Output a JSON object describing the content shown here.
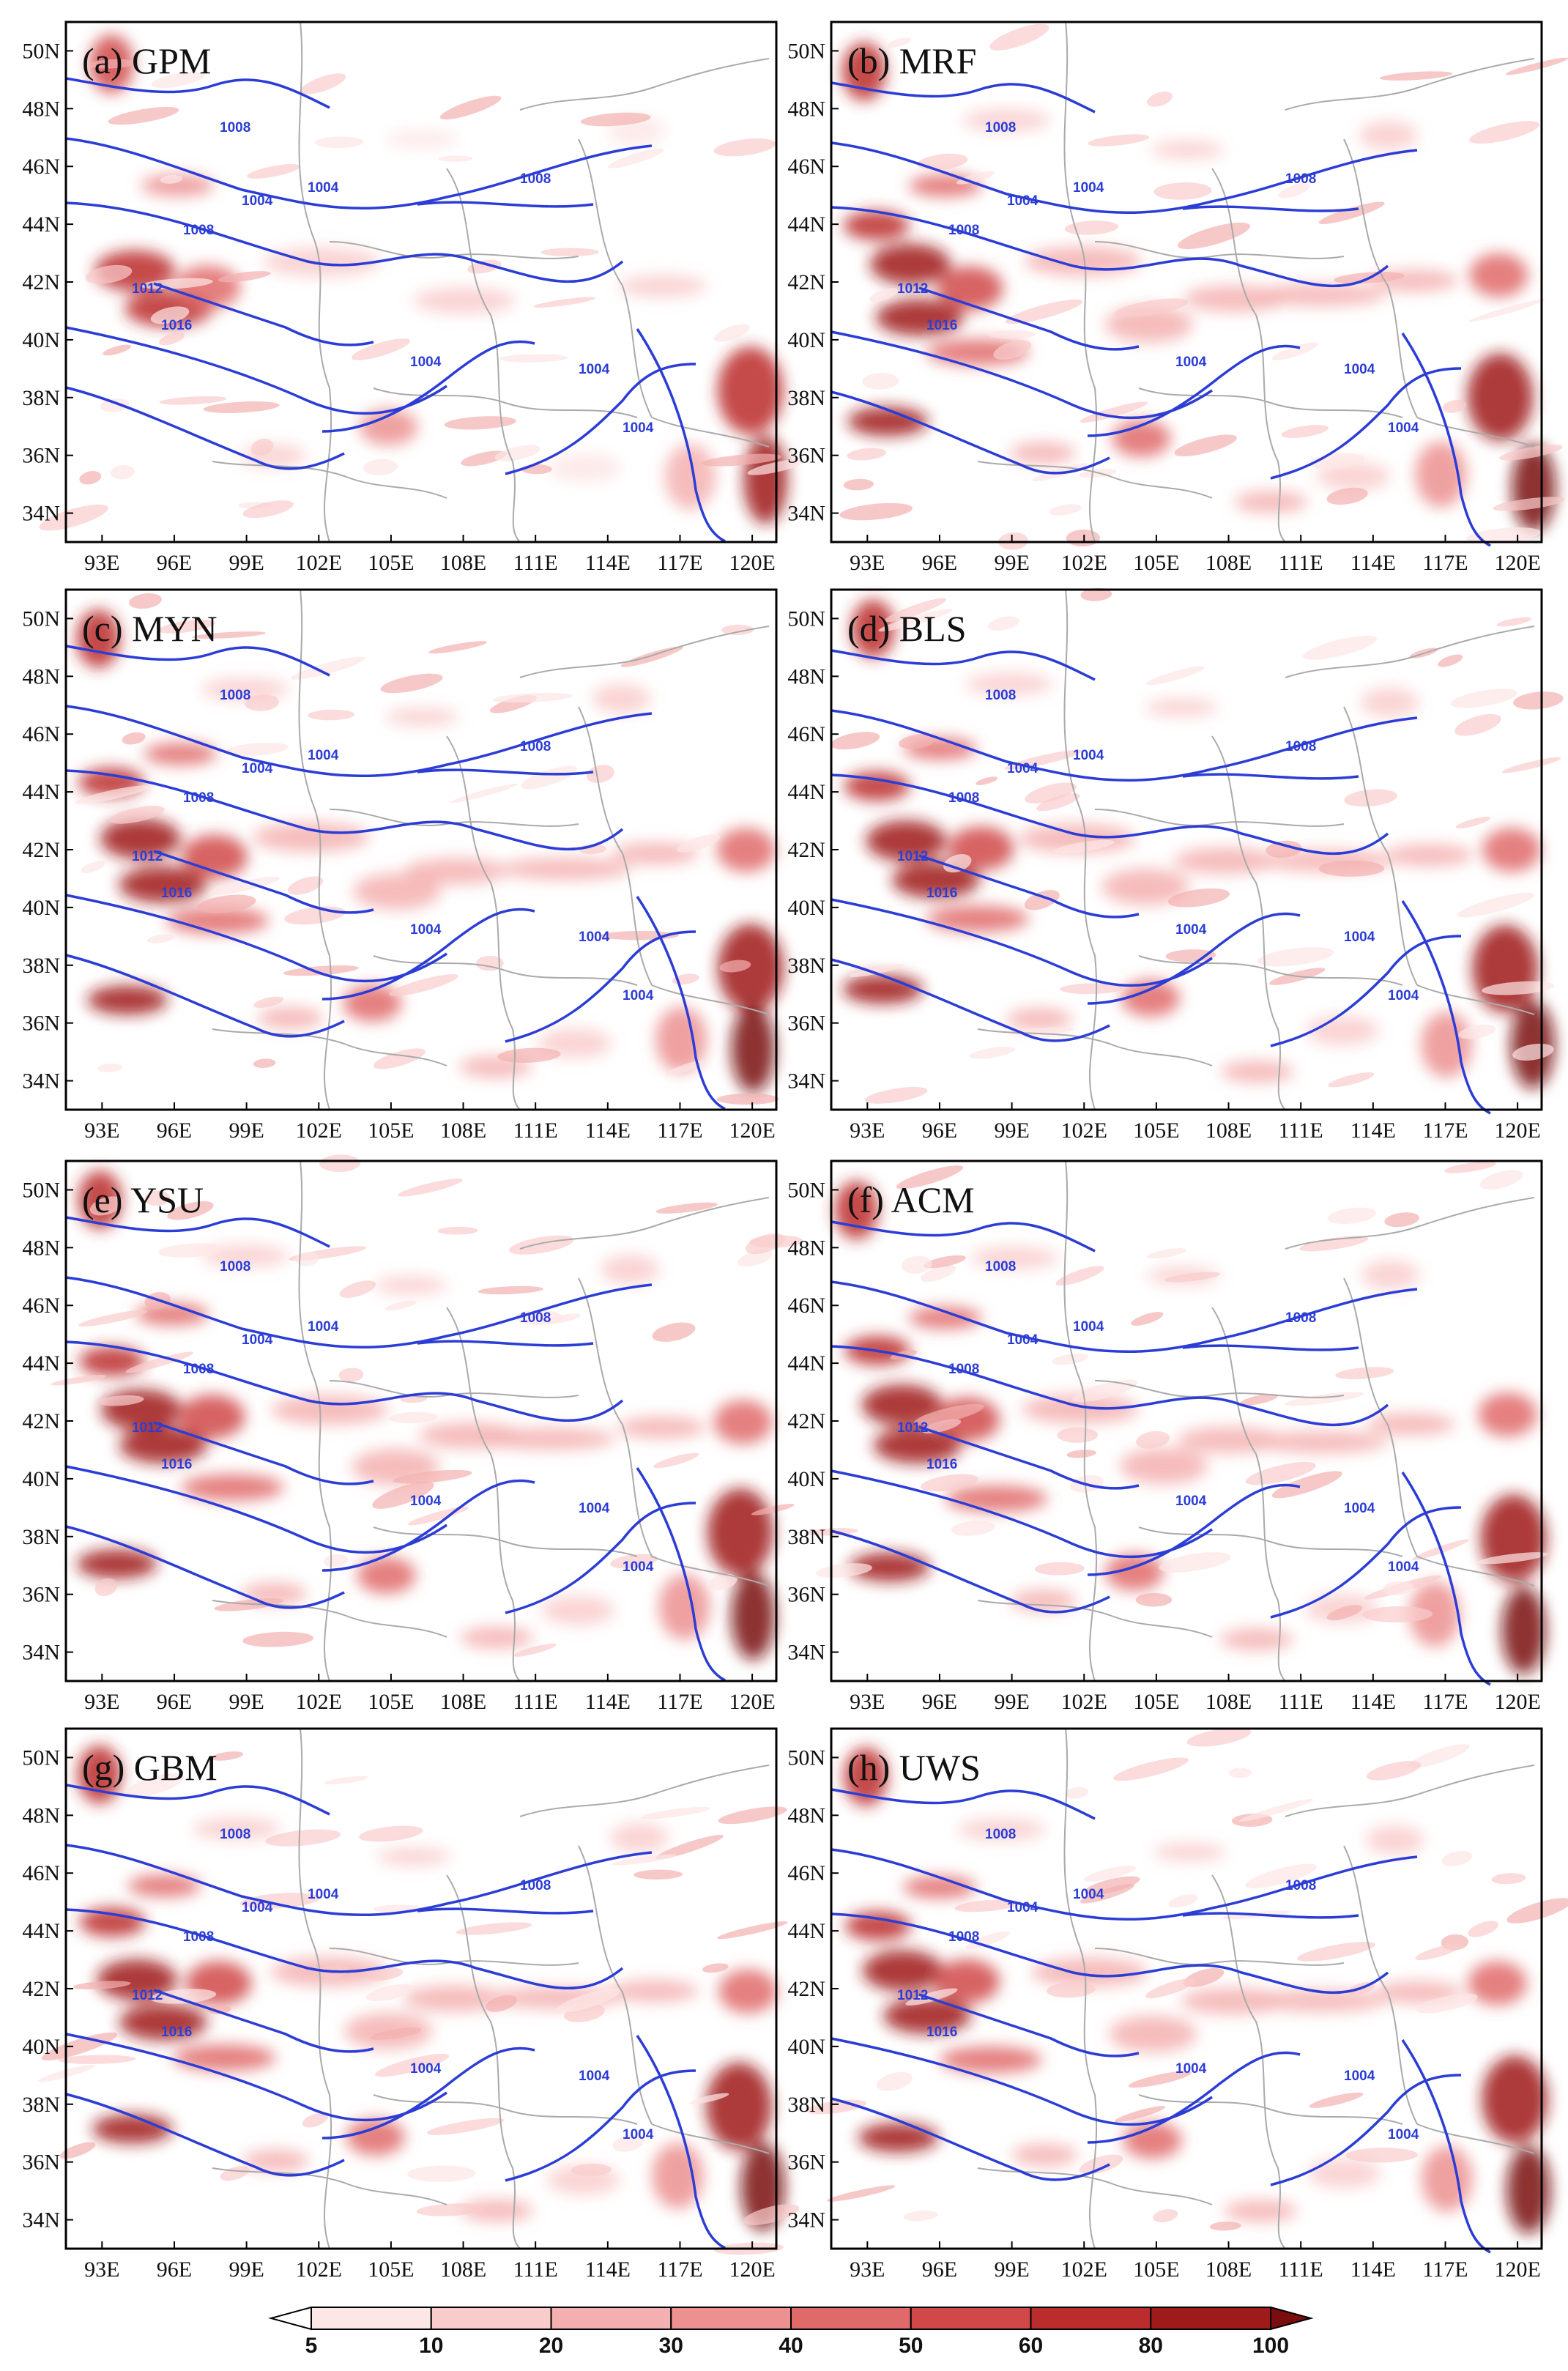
{
  "panels": [
    {
      "label": "(a) GPM"
    },
    {
      "label": "(b) MRF"
    },
    {
      "label": "(c) MYN"
    },
    {
      "label": "(d) BLS"
    },
    {
      "label": "(e) YSU"
    },
    {
      "label": "(f) ACM"
    },
    {
      "label": "(g) GBM"
    },
    {
      "label": "(h) UWS"
    }
  ],
  "axes": {
    "x_ticks": [
      "93E",
      "96E",
      "99E",
      "102E",
      "105E",
      "108E",
      "111E",
      "114E",
      "117E",
      "120E"
    ],
    "y_ticks": [
      "50N",
      "48N",
      "46N",
      "44N",
      "42N",
      "40N",
      "38N",
      "36N",
      "34N"
    ]
  },
  "contour_labels": [
    "1004",
    "1008",
    "1012",
    "1016"
  ],
  "colorbar": {
    "ticks": [
      "5",
      "10",
      "20",
      "30",
      "40",
      "50",
      "60",
      "80",
      "100"
    ],
    "colors": [
      "#ffffff",
      "#fde6e6",
      "#f9cccc",
      "#f4b0b0",
      "#ec9090",
      "#e06a6a",
      "#d04848",
      "#bb2c2c",
      "#9f1a1a",
      "#7a0d0d"
    ]
  },
  "style": {
    "contour_color": "#2c3dd6",
    "boundary_color": "#aaaaaa"
  }
}
